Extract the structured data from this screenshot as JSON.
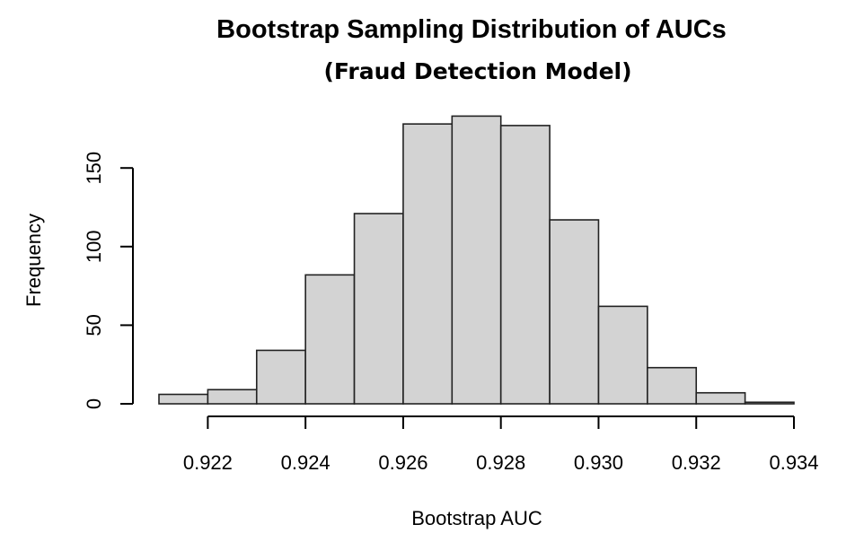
{
  "chart_data": {
    "type": "bar",
    "title": "Bootstrap Sampling Distribution of AUCs",
    "subtitle": "(Fraud Detection Model)",
    "xlabel": "Bootstrap AUC",
    "ylabel": "Frequency",
    "xlim": [
      0.921,
      0.934
    ],
    "ylim": [
      0,
      185
    ],
    "bin_width": 0.001,
    "bins": [
      {
        "x0": 0.921,
        "x1": 0.922,
        "value": 6
      },
      {
        "x0": 0.922,
        "x1": 0.923,
        "value": 9
      },
      {
        "x0": 0.923,
        "x1": 0.924,
        "value": 34
      },
      {
        "x0": 0.924,
        "x1": 0.925,
        "value": 82
      },
      {
        "x0": 0.925,
        "x1": 0.926,
        "value": 121
      },
      {
        "x0": 0.926,
        "x1": 0.927,
        "value": 178
      },
      {
        "x0": 0.927,
        "x1": 0.928,
        "value": 183
      },
      {
        "x0": 0.928,
        "x1": 0.929,
        "value": 177
      },
      {
        "x0": 0.929,
        "x1": 0.93,
        "value": 117
      },
      {
        "x0": 0.93,
        "x1": 0.931,
        "value": 62
      },
      {
        "x0": 0.931,
        "x1": 0.932,
        "value": 23
      },
      {
        "x0": 0.932,
        "x1": 0.933,
        "value": 7
      },
      {
        "x0": 0.933,
        "x1": 0.934,
        "value": 1
      }
    ],
    "x_ticks": [
      "0.922",
      "0.924",
      "0.926",
      "0.928",
      "0.930",
      "0.932",
      "0.934"
    ],
    "x_tick_values": [
      0.922,
      0.924,
      0.926,
      0.928,
      0.93,
      0.932,
      0.934
    ],
    "y_ticks": [
      "0",
      "50",
      "100",
      "150"
    ],
    "y_tick_values": [
      0,
      50,
      100,
      150
    ],
    "bar_color": "#d3d3d3",
    "edge_color": "#222222",
    "grid": false,
    "legend": "none"
  }
}
